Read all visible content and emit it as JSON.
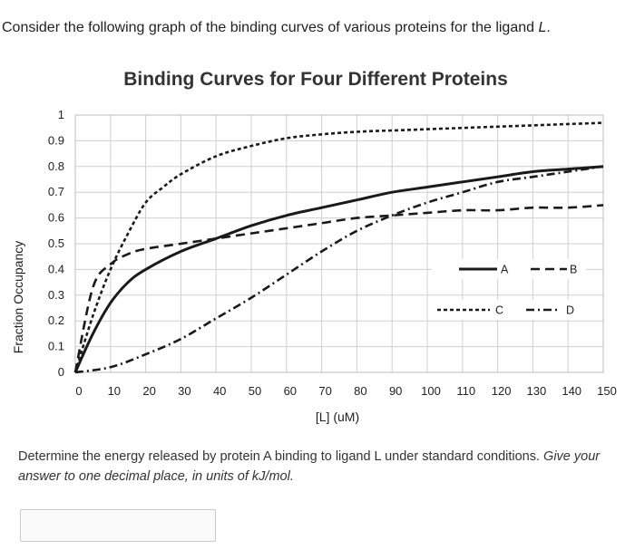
{
  "question": {
    "intro_before": "Consider the following graph of the binding curves of various proteins for the ligand ",
    "intro_ligand": "L",
    "intro_after": ".",
    "prompt_main": "Determine the energy released by protein A binding to ligand L under standard conditions. ",
    "prompt_italic": "Give your answer to one decimal place, in units of kJ/mol."
  },
  "answer": {
    "value": ""
  },
  "chart_data": {
    "type": "line",
    "title": "Binding Curves for Four Different Proteins",
    "xlabel": "[L] (uM)",
    "ylabel": "Fraction Occupancy",
    "xlim": [
      0,
      150
    ],
    "ylim": [
      0,
      1
    ],
    "x_ticks": [
      0,
      10,
      20,
      30,
      40,
      50,
      60,
      70,
      80,
      90,
      100,
      110,
      120,
      130,
      140,
      150
    ],
    "y_ticks": [
      0,
      0.1,
      0.2,
      0.3,
      0.4,
      0.5,
      0.6,
      0.7,
      0.8,
      0.9,
      1
    ],
    "y_tick_labels": [
      "0",
      "0.1",
      "0.2",
      "0.3",
      "0.4",
      "0.5",
      "0.6",
      "0.7",
      "0.8",
      "0.9",
      "1"
    ],
    "grid": true,
    "legend_position": "right",
    "series": [
      {
        "name": "A",
        "style": "solid",
        "x": [
          0,
          5,
          10,
          15,
          20,
          30,
          40,
          50,
          60,
          70,
          80,
          90,
          100,
          110,
          120,
          130,
          140,
          150
        ],
        "y": [
          0,
          0.15,
          0.27,
          0.35,
          0.4,
          0.47,
          0.52,
          0.57,
          0.61,
          0.64,
          0.67,
          0.7,
          0.72,
          0.74,
          0.76,
          0.78,
          0.79,
          0.8
        ]
      },
      {
        "name": "B",
        "style": "dashed",
        "x": [
          0,
          5,
          10,
          15,
          20,
          30,
          40,
          50,
          60,
          70,
          80,
          90,
          100,
          110,
          120,
          130,
          140,
          150
        ],
        "y": [
          0,
          0.33,
          0.42,
          0.46,
          0.48,
          0.5,
          0.52,
          0.54,
          0.56,
          0.58,
          0.6,
          0.61,
          0.62,
          0.63,
          0.63,
          0.64,
          0.64,
          0.65
        ]
      },
      {
        "name": "C",
        "style": "dotted",
        "x": [
          0,
          5,
          10,
          15,
          20,
          25,
          30,
          40,
          50,
          60,
          70,
          80,
          90,
          100,
          110,
          120,
          130,
          140,
          150
        ],
        "y": [
          0,
          0.22,
          0.4,
          0.54,
          0.66,
          0.72,
          0.77,
          0.84,
          0.88,
          0.91,
          0.925,
          0.935,
          0.94,
          0.945,
          0.95,
          0.955,
          0.96,
          0.965,
          0.97
        ]
      },
      {
        "name": "D",
        "style": "dash-dot",
        "x": [
          0,
          10,
          20,
          30,
          40,
          50,
          60,
          70,
          80,
          90,
          100,
          110,
          120,
          130,
          140,
          150
        ],
        "y": [
          0,
          0.02,
          0.07,
          0.13,
          0.21,
          0.29,
          0.38,
          0.47,
          0.55,
          0.61,
          0.66,
          0.7,
          0.74,
          0.76,
          0.78,
          0.8
        ]
      }
    ]
  }
}
